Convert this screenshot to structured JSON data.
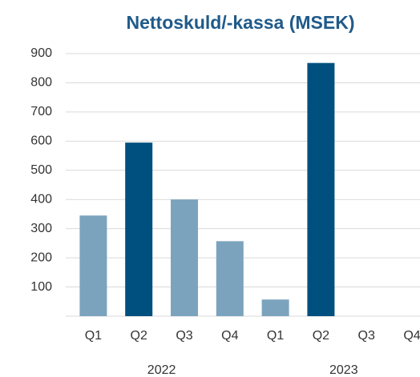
{
  "chart_data": {
    "type": "bar",
    "title": "Nettoskuld/-kassa (MSEK)",
    "categories": [
      "Q1",
      "Q2",
      "Q3",
      "Q4",
      "Q1",
      "Q2",
      "Q3",
      "Q4"
    ],
    "groups": [
      "2022",
      "2023"
    ],
    "values": [
      345,
      595,
      400,
      257,
      57,
      868,
      null,
      null
    ],
    "colors": [
      "#7ba3be",
      "#00507f",
      "#7ba3be",
      "#7ba3be",
      "#7ba3be",
      "#00507f",
      "#7ba3be",
      "#00507f"
    ],
    "ylim": [
      0,
      900
    ],
    "yticks": [
      100,
      200,
      300,
      400,
      500,
      600,
      700,
      800,
      900
    ],
    "grid": true
  }
}
